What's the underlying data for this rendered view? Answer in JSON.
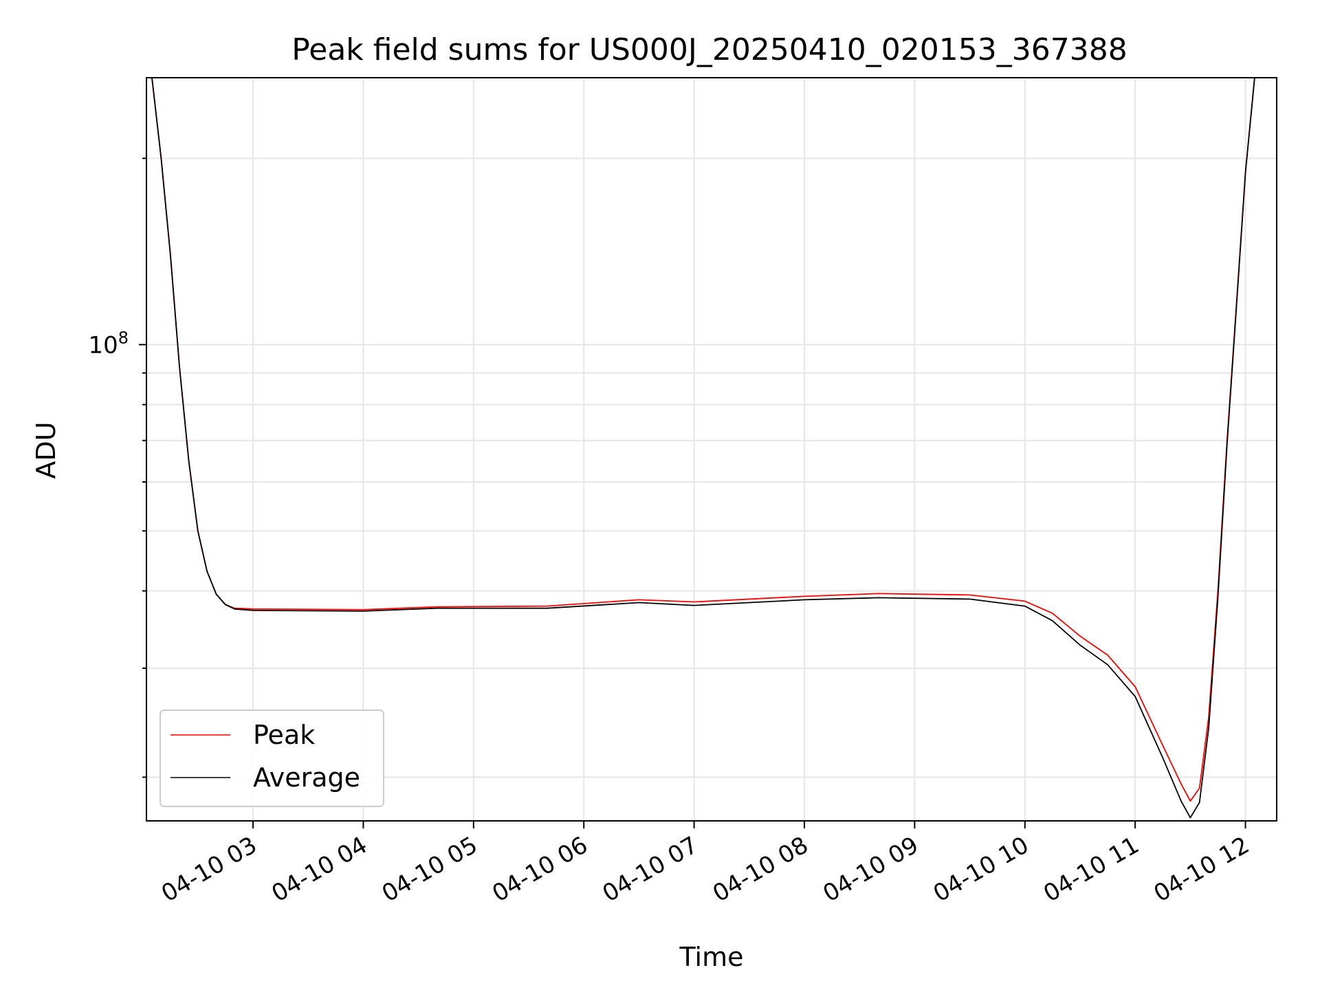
{
  "chart_data": {
    "type": "line",
    "title": "Peak field sums for US000J_20250410_020153_367388",
    "xlabel": "Time",
    "ylabel": "ADU",
    "yscale": "log",
    "grid": true,
    "legend_position": "lower-left",
    "xlim": [
      "2025-04-10 02:02",
      "2025-04-10 12:17"
    ],
    "ylim": [
      17000000,
      270000000
    ],
    "x_ticks": [
      "04-10 03",
      "04-10 04",
      "04-10 05",
      "04-10 06",
      "04-10 07",
      "04-10 08",
      "04-10 09",
      "04-10 10",
      "04-10 11",
      "04-10 12"
    ],
    "y_ticks": [
      {
        "value": 100000000,
        "base": "10",
        "exponent": "8"
      }
    ],
    "series": [
      {
        "name": "Peak",
        "color": "#ff0000",
        "x": [
          "2025-04-10 02:05",
          "2025-04-10 02:10",
          "2025-04-10 02:15",
          "2025-04-10 02:20",
          "2025-04-10 02:25",
          "2025-04-10 02:30",
          "2025-04-10 02:35",
          "2025-04-10 02:40",
          "2025-04-10 02:45",
          "2025-04-10 02:50",
          "2025-04-10 03:00",
          "2025-04-10 04:00",
          "2025-04-10 04:40",
          "2025-04-10 05:40",
          "2025-04-10 06:30",
          "2025-04-10 07:00",
          "2025-04-10 08:00",
          "2025-04-10 08:40",
          "2025-04-10 09:30",
          "2025-04-10 10:00",
          "2025-04-10 10:15",
          "2025-04-10 10:30",
          "2025-04-10 10:45",
          "2025-04-10 11:00",
          "2025-04-10 11:15",
          "2025-04-10 11:25",
          "2025-04-10 11:30",
          "2025-04-10 11:35",
          "2025-04-10 11:40",
          "2025-04-10 11:45",
          "2025-04-10 11:50",
          "2025-04-10 11:55",
          "2025-04-10 12:00",
          "2025-04-10 12:05"
        ],
        "y": [
          270000000,
          200000000,
          140000000,
          92000000,
          65000000,
          50000000,
          43000000,
          39500000,
          38000000,
          37500000,
          37400000,
          37300000,
          37700000,
          37800000,
          38700000,
          38400000,
          39200000,
          39600000,
          39400000,
          38500000,
          36800000,
          33800000,
          31500000,
          28000000,
          22500000,
          19500000,
          18300000,
          19200000,
          25000000,
          40000000,
          70000000,
          115000000,
          190000000,
          270000000
        ]
      },
      {
        "name": "Average",
        "color": "#000000",
        "x": [
          "2025-04-10 02:05",
          "2025-04-10 02:10",
          "2025-04-10 02:15",
          "2025-04-10 02:20",
          "2025-04-10 02:25",
          "2025-04-10 02:30",
          "2025-04-10 02:35",
          "2025-04-10 02:40",
          "2025-04-10 02:45",
          "2025-04-10 02:50",
          "2025-04-10 03:00",
          "2025-04-10 04:00",
          "2025-04-10 04:40",
          "2025-04-10 05:40",
          "2025-04-10 06:30",
          "2025-04-10 07:00",
          "2025-04-10 08:00",
          "2025-04-10 08:40",
          "2025-04-10 09:30",
          "2025-04-10 10:00",
          "2025-04-10 10:15",
          "2025-04-10 10:30",
          "2025-04-10 10:45",
          "2025-04-10 11:00",
          "2025-04-10 11:15",
          "2025-04-10 11:25",
          "2025-04-10 11:30",
          "2025-04-10 11:35",
          "2025-04-10 11:40",
          "2025-04-10 11:45",
          "2025-04-10 11:50",
          "2025-04-10 11:55",
          "2025-04-10 12:00",
          "2025-04-10 12:05"
        ],
        "y": [
          270000000,
          200000000,
          140000000,
          92000000,
          65000000,
          50000000,
          43000000,
          39500000,
          38000000,
          37400000,
          37200000,
          37100000,
          37500000,
          37500000,
          38300000,
          37900000,
          38700000,
          39000000,
          38800000,
          37800000,
          35800000,
          32700000,
          30400000,
          27000000,
          21500000,
          18300000,
          17200000,
          18200000,
          24000000,
          39000000,
          69000000,
          114000000,
          190000000,
          270000000
        ]
      }
    ]
  }
}
